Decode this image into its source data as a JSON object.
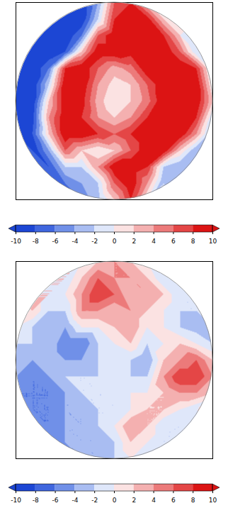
{
  "chart_data": [
    {
      "type": "heatmap",
      "x": [
        -6,
        -5,
        -4,
        -3,
        -2,
        -1,
        0,
        1,
        2,
        3,
        4,
        5,
        6
      ],
      "y": [
        6,
        5,
        4,
        3,
        2,
        1,
        0,
        -1,
        -2,
        -3,
        -4,
        -5,
        -6
      ],
      "xlim": [
        -6,
        6
      ],
      "ylim": [
        -6,
        6
      ],
      "tick_labels": false,
      "cells": [
        [
          null,
          null,
          null,
          null,
          -10,
          -4,
          6,
          8,
          2,
          null,
          null,
          null,
          null
        ],
        [
          null,
          null,
          null,
          -10,
          -10,
          -2,
          8,
          10,
          9,
          2,
          null,
          null,
          null
        ],
        [
          null,
          null,
          -10,
          -10,
          -6,
          6,
          10,
          10,
          10,
          8,
          2,
          null,
          null
        ],
        [
          null,
          -10,
          -10,
          -8,
          2,
          10,
          10,
          9,
          10,
          10,
          6,
          -2,
          null
        ],
        [
          -10,
          -10,
          -6,
          8,
          10,
          6,
          3,
          5,
          10,
          10,
          10,
          8,
          -2
        ],
        [
          -10,
          -10,
          -2,
          10,
          10,
          4,
          1,
          2,
          6,
          10,
          10,
          10,
          0
        ],
        [
          -10,
          -10,
          2,
          10,
          9,
          3,
          0,
          2,
          5,
          10,
          10,
          10,
          2
        ],
        [
          -10,
          -9,
          4,
          10,
          8,
          4,
          2,
          4,
          8,
          10,
          10,
          8,
          -2
        ],
        [
          -10,
          -8,
          2,
          10,
          10,
          8,
          6,
          8,
          10,
          10,
          10,
          4,
          -4
        ],
        [
          null,
          -10,
          -4,
          6,
          2,
          0,
          2,
          6,
          10,
          10,
          2,
          -4,
          null
        ],
        [
          null,
          null,
          -8,
          -2,
          -2,
          4,
          10,
          10,
          8,
          -2,
          -4,
          null,
          null
        ],
        [
          null,
          null,
          null,
          -6,
          -4,
          -2,
          6,
          10,
          4,
          -4,
          null,
          null,
          null
        ],
        [
          null,
          null,
          null,
          null,
          -5,
          -3,
          2,
          8,
          0,
          null,
          null,
          null,
          null
        ]
      ],
      "colorbar": {
        "range": [
          -10,
          10
        ],
        "ticks": [
          -10,
          -8,
          -6,
          -4,
          -2,
          0,
          2,
          4,
          6,
          8,
          10
        ]
      }
    },
    {
      "type": "heatmap",
      "x": [
        -6,
        -5,
        -4,
        -3,
        -2,
        -1,
        0,
        1,
        2,
        3,
        4,
        5,
        6
      ],
      "y": [
        6,
        5,
        4,
        3,
        2,
        1,
        0,
        -1,
        -2,
        -3,
        -4,
        -5,
        -6
      ],
      "xlim": [
        -6,
        6
      ],
      "ylim": [
        -6,
        6
      ],
      "tick_labels": false,
      "cells": [
        [
          null,
          null,
          null,
          null,
          0,
          2,
          4,
          2,
          0,
          null,
          null,
          null,
          null
        ],
        [
          null,
          null,
          null,
          -2,
          2,
          6,
          4,
          4,
          2,
          -2,
          null,
          null,
          null
        ],
        [
          null,
          null,
          -2,
          0,
          4,
          8,
          6,
          2,
          4,
          2,
          -2,
          null,
          null
        ],
        [
          null,
          2,
          -2,
          -2,
          4,
          4,
          2,
          4,
          2,
          0,
          -2,
          -2,
          null
        ],
        [
          0,
          -2,
          -4,
          -4,
          0,
          0,
          2,
          4,
          0,
          0,
          -2,
          -3,
          -2
        ],
        [
          -2,
          -2,
          -2,
          -6,
          -6,
          -2,
          0,
          2,
          -2,
          0,
          2,
          0,
          -2
        ],
        [
          -4,
          -4,
          -2,
          -4,
          -4,
          -2,
          0,
          -2,
          -4,
          2,
          4,
          6,
          2
        ],
        [
          -4,
          -6,
          -4,
          -2,
          -2,
          -2,
          0,
          -2,
          -2,
          4,
          8,
          8,
          4
        ],
        [
          -6,
          -6,
          -6,
          -4,
          -2,
          -2,
          -2,
          0,
          0,
          2,
          4,
          4,
          2
        ],
        [
          null,
          -6,
          -6,
          -4,
          -4,
          -2,
          -2,
          0,
          2,
          2,
          0,
          -2,
          null
        ],
        [
          null,
          null,
          -6,
          -4,
          -4,
          -2,
          0,
          4,
          2,
          -2,
          -2,
          null,
          null
        ],
        [
          null,
          null,
          null,
          -4,
          -4,
          -4,
          -2,
          2,
          0,
          -2,
          null,
          null,
          null
        ],
        [
          null,
          null,
          null,
          null,
          -4,
          -4,
          -2,
          0,
          -2,
          null,
          null,
          null,
          null
        ]
      ],
      "colorbar": {
        "range": [
          -10,
          10
        ],
        "ticks": [
          -10,
          -8,
          -6,
          -4,
          -2,
          0,
          2,
          4,
          6,
          8,
          10
        ]
      }
    }
  ]
}
